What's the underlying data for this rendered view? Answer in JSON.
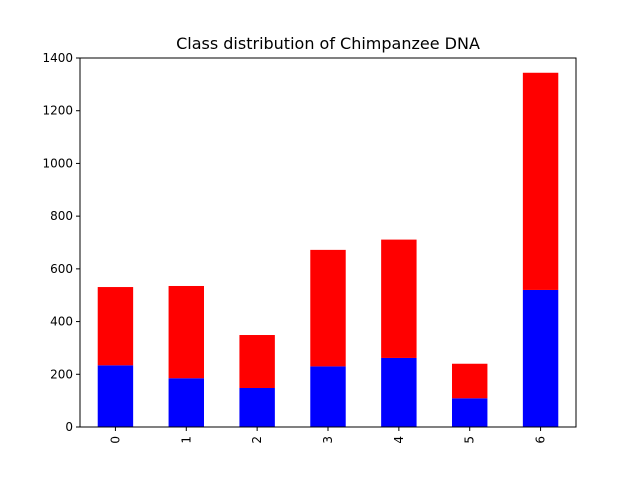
{
  "chart_data": {
    "type": "bar",
    "stacked": true,
    "title": "Class distribution of Chimpanzee DNA",
    "xlabel": "",
    "ylabel": "",
    "categories": [
      "0",
      "1",
      "2",
      "3",
      "4",
      "5",
      "6"
    ],
    "series": [
      {
        "color": "#0000ff",
        "values": [
          234,
          185,
          148,
          230,
          262,
          109,
          520
        ]
      },
      {
        "color": "#ff0000",
        "values": [
          297,
          350,
          201,
          442,
          449,
          131,
          824
        ]
      }
    ],
    "ylim": [
      0,
      1400
    ],
    "yticks": [
      0,
      200,
      400,
      600,
      800,
      1000,
      1200,
      1400
    ],
    "grid": false,
    "legend": "none"
  }
}
